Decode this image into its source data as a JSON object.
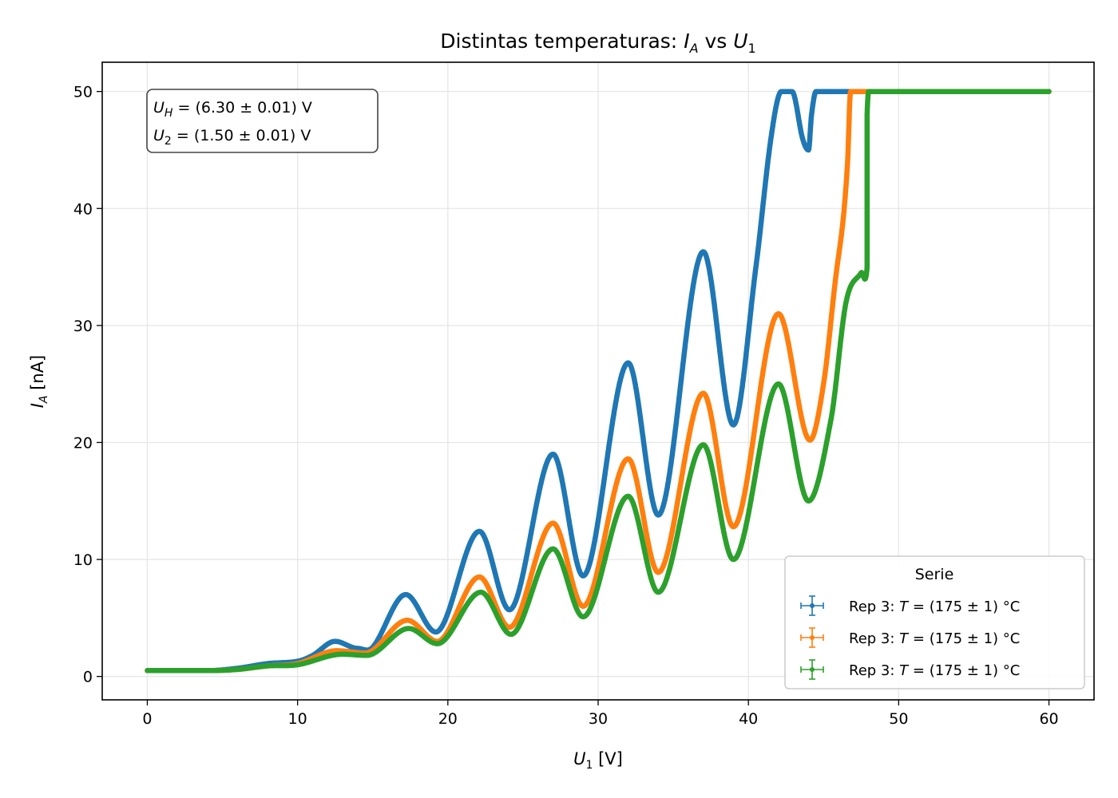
{
  "chart_data": {
    "type": "scatter",
    "title": "Distintas temperaturas: I_A vs U_1",
    "title_parts": {
      "prefix": "Distintas temperaturas: ",
      "y_sym": "I",
      "y_sub": "A",
      "mid": " vs ",
      "x_sym": "U",
      "x_sub": "1"
    },
    "xlabel": "U_1 [V]",
    "xlabel_parts": {
      "sym": "U",
      "sub": "1",
      "unit": " [V]"
    },
    "ylabel": "I_A [nA]",
    "ylabel_parts": {
      "sym": "I",
      "sub": "A",
      "unit": " [nA]"
    },
    "xlim": [
      -3,
      63
    ],
    "ylim": [
      -2,
      52.5
    ],
    "xticks": [
      0,
      10,
      20,
      30,
      40,
      50,
      60
    ],
    "yticks": [
      0,
      10,
      20,
      30,
      40,
      50
    ],
    "grid": true,
    "annotation": {
      "lines": [
        {
          "sym": "U",
          "sub": "H",
          "text": " = (6.30 ± 0.01) V"
        },
        {
          "sym": "U",
          "sub": "2",
          "text": " = (1.50 ± 0.01) V"
        }
      ]
    },
    "legend": {
      "title": "Serie",
      "placement": "lower right",
      "entries": [
        {
          "prefix": "Rep 3: ",
          "sym": "T",
          "text": " = (175 ± 1) °C",
          "color": "#1f77b4"
        },
        {
          "prefix": "Rep 3: ",
          "sym": "T",
          "text": " = (175 ± 1) °C",
          "color": "#ff7f0e"
        },
        {
          "prefix": "Rep 3: ",
          "sym": "T",
          "text": " = (175 ± 1) °C",
          "color": "#2ca02c"
        }
      ]
    },
    "series": [
      {
        "color": "#1f77b4",
        "points": [
          [
            0,
            0.5
          ],
          [
            2,
            0.5
          ],
          [
            4,
            0.5
          ],
          [
            6,
            0.7
          ],
          [
            8,
            1.1
          ],
          [
            10,
            1.3
          ],
          [
            11,
            1.8
          ],
          [
            12.5,
            3.0
          ],
          [
            14,
            2.4
          ],
          [
            15,
            2.5
          ],
          [
            17.2,
            7.0
          ],
          [
            19.2,
            3.8
          ],
          [
            22.1,
            12.4
          ],
          [
            24.1,
            5.7
          ],
          [
            27,
            19.0
          ],
          [
            29,
            8.6
          ],
          [
            32,
            26.8
          ],
          [
            34,
            13.8
          ],
          [
            37,
            36.3
          ],
          [
            39,
            21.5
          ],
          [
            40.5,
            35
          ],
          [
            41.5,
            46
          ],
          [
            42.2,
            50
          ],
          [
            42.9,
            50
          ],
          [
            43.6,
            46
          ],
          [
            44,
            45
          ],
          [
            44.2,
            48
          ],
          [
            44.5,
            50
          ],
          [
            60,
            50
          ]
        ]
      },
      {
        "color": "#ff7f0e",
        "points": [
          [
            0,
            0.5
          ],
          [
            4,
            0.5
          ],
          [
            6,
            0.6
          ],
          [
            8,
            0.9
          ],
          [
            10,
            1.1
          ],
          [
            12.6,
            2.2
          ],
          [
            14.5,
            2.0
          ],
          [
            17.3,
            4.8
          ],
          [
            19.3,
            3.0
          ],
          [
            22.1,
            8.5
          ],
          [
            24.1,
            4.2
          ],
          [
            27,
            13.1
          ],
          [
            29,
            6.0
          ],
          [
            32,
            18.6
          ],
          [
            34,
            8.9
          ],
          [
            37,
            24.2
          ],
          [
            39,
            12.8
          ],
          [
            42,
            31.0
          ],
          [
            44.1,
            20.2
          ],
          [
            45,
            25
          ],
          [
            45.8,
            34
          ],
          [
            46.3,
            39
          ],
          [
            46.6,
            44
          ],
          [
            46.8,
            50
          ],
          [
            60,
            50
          ]
        ]
      },
      {
        "color": "#2ca02c",
        "points": [
          [
            0,
            0.5
          ],
          [
            4,
            0.5
          ],
          [
            6,
            0.6
          ],
          [
            8,
            0.9
          ],
          [
            10,
            1.0
          ],
          [
            13,
            1.9
          ],
          [
            14.6,
            1.8
          ],
          [
            17.4,
            4.1
          ],
          [
            19.3,
            2.8
          ],
          [
            22.2,
            7.2
          ],
          [
            24.2,
            3.6
          ],
          [
            27,
            10.9
          ],
          [
            29,
            5.1
          ],
          [
            32,
            15.4
          ],
          [
            34,
            7.2
          ],
          [
            37,
            19.8
          ],
          [
            39,
            10.0
          ],
          [
            42,
            25.0
          ],
          [
            44,
            15.0
          ],
          [
            45.5,
            22
          ],
          [
            46.5,
            32
          ],
          [
            47.5,
            34.5
          ],
          [
            47.9,
            35.0
          ],
          [
            47.9,
            41
          ],
          [
            47.9,
            46
          ],
          [
            47.9,
            48
          ],
          [
            48,
            50
          ],
          [
            60,
            50
          ]
        ]
      }
    ]
  }
}
